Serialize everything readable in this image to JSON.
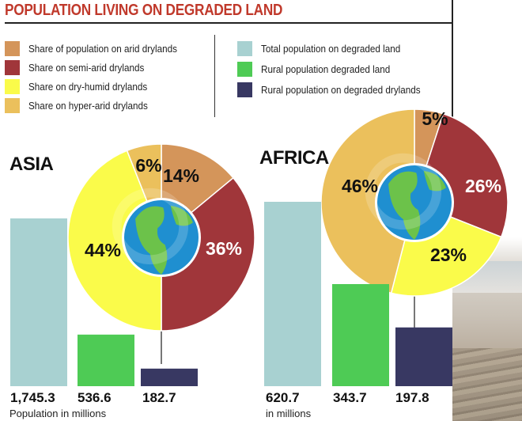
{
  "title": "POPULATION LIVING ON DEGRADED LAND",
  "legend_pie": [
    {
      "label": "Share of population on arid drylands",
      "color": "#d4955a"
    },
    {
      "label": "Share on semi-arid drylands",
      "color": "#a0363a"
    },
    {
      "label": "Share on dry-humid drylands",
      "color": "#fafb4a"
    },
    {
      "label": "Share on hyper-arid drylands",
      "color": "#ebc05c"
    }
  ],
  "legend_bar": [
    {
      "label": "Total population on degraded land",
      "color": "#a8d1d1"
    },
    {
      "label": "Rural population degraded land",
      "color": "#4ecb55"
    },
    {
      "label": "Rural population on degraded drylands",
      "color": "#383862"
    }
  ],
  "chart_data": [
    {
      "type": "pie",
      "region": "ASIA",
      "slices": [
        {
          "name": "Share of population on arid drylands",
          "value": 14,
          "label": "14%",
          "color": "#d4955a"
        },
        {
          "name": "Share on semi-arid drylands",
          "value": 36,
          "label": "36%",
          "color": "#a0363a"
        },
        {
          "name": "Share on dry-humid drylands",
          "value": 44,
          "label": "44%",
          "color": "#fafb4a"
        },
        {
          "name": "Share on hyper-arid drylands",
          "value": 6,
          "label": "6%",
          "color": "#ebc05c"
        }
      ]
    },
    {
      "type": "bar",
      "region": "ASIA",
      "categories": [
        "Total population on degraded land",
        "Rural population degraded land",
        "Rural population on degraded drylands"
      ],
      "values": [
        1745.3,
        536.6,
        182.7
      ],
      "value_labels": [
        "1,745.3",
        "536.6",
        "182.7"
      ],
      "unit_label": "Population in millions"
    },
    {
      "type": "pie",
      "region": "AFRICA",
      "slices": [
        {
          "name": "Share of population on arid drylands",
          "value": 5,
          "label": "5%",
          "color": "#d4955a"
        },
        {
          "name": "Share on semi-arid drylands",
          "value": 26,
          "label": "26%",
          "color": "#a0363a"
        },
        {
          "name": "Share on dry-humid drylands",
          "value": 23,
          "label": "23%",
          "color": "#fafb4a"
        },
        {
          "name": "Share on hyper-arid drylands",
          "value": 46,
          "label": "46%",
          "color": "#ebc05c"
        }
      ]
    },
    {
      "type": "bar",
      "region": "AFRICA",
      "categories": [
        "Total population on degraded land",
        "Rural population degraded land",
        "Rural population on degraded drylands"
      ],
      "values": [
        620.7,
        343.7,
        197.8
      ],
      "value_labels": [
        "620.7",
        "343.7",
        "197.8"
      ],
      "unit_label": "in millions"
    }
  ]
}
